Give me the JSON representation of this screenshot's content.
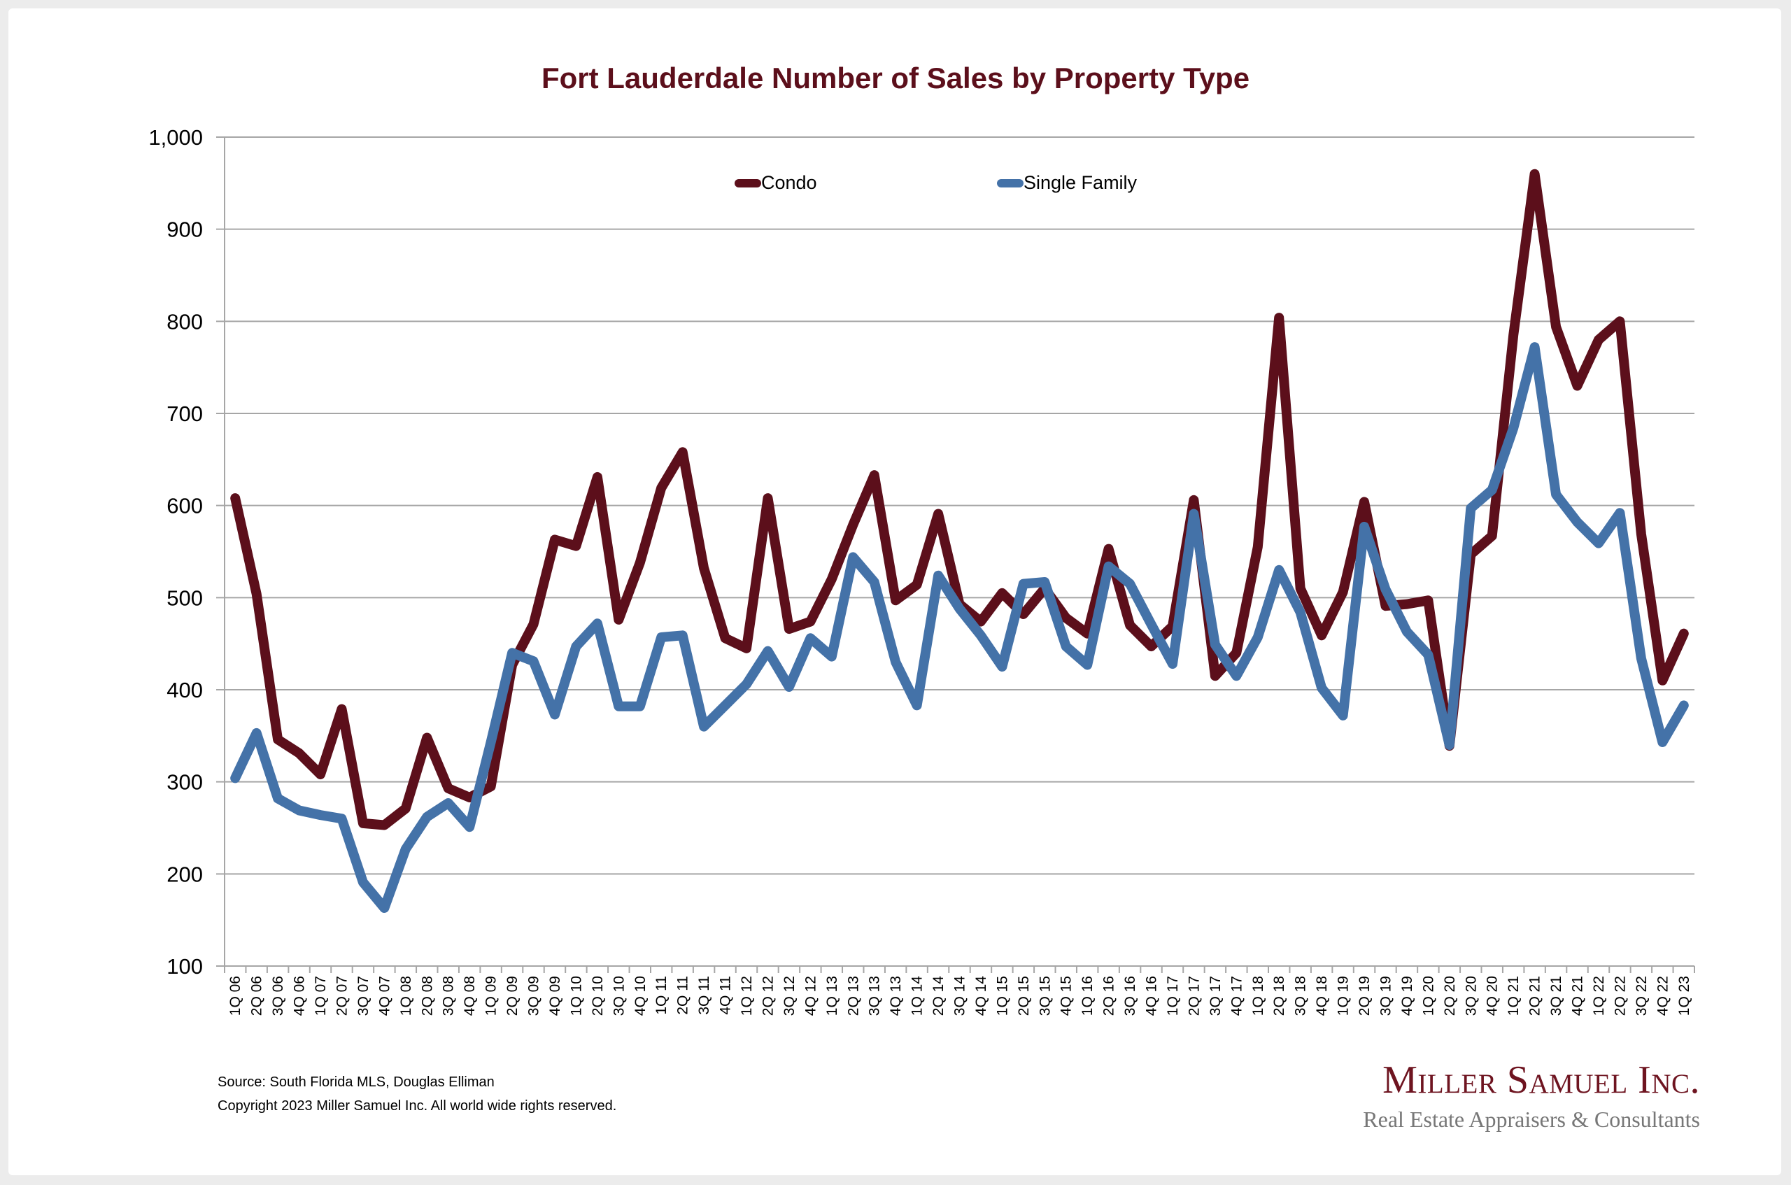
{
  "panel": {
    "background": "#ffffff",
    "frame": "#ececec"
  },
  "chart_data": {
    "type": "line",
    "title": "Fort Lauderdale Number of Sales by Property Type",
    "xlabel": "",
    "ylabel": "",
    "ylim": [
      100,
      1000
    ],
    "yticks": [
      100,
      200,
      300,
      400,
      500,
      600,
      700,
      800,
      900,
      1000
    ],
    "ytick_labels": [
      "100",
      "200",
      "300",
      "400",
      "500",
      "600",
      "700",
      "800",
      "900",
      "1,000"
    ],
    "grid": true,
    "legend_position": "top-center",
    "categories": [
      "1Q 06",
      "2Q 06",
      "3Q 06",
      "4Q 06",
      "1Q 07",
      "2Q 07",
      "3Q 07",
      "4Q 07",
      "1Q 08",
      "2Q 08",
      "3Q 08",
      "4Q 08",
      "1Q 09",
      "2Q 09",
      "3Q 09",
      "4Q 09",
      "1Q 10",
      "2Q 10",
      "3Q 10",
      "4Q 10",
      "1Q 11",
      "2Q 11",
      "3Q 11",
      "4Q 11",
      "1Q 12",
      "2Q 12",
      "3Q 12",
      "4Q 12",
      "1Q 13",
      "2Q 13",
      "3Q 13",
      "4Q 13",
      "1Q 14",
      "2Q 14",
      "3Q 14",
      "4Q 14",
      "1Q 15",
      "2Q 15",
      "3Q 15",
      "4Q 15",
      "1Q 16",
      "2Q 16",
      "3Q 16",
      "4Q 16",
      "1Q 17",
      "2Q 17",
      "3Q 17",
      "4Q 17",
      "1Q 18",
      "2Q 18",
      "3Q 18",
      "4Q 18",
      "1Q 19",
      "2Q 19",
      "3Q 19",
      "4Q 19",
      "1Q 20",
      "2Q 20",
      "3Q 20",
      "4Q 20",
      "1Q 21",
      "2Q 21",
      "3Q 21",
      "4Q 21",
      "1Q 22",
      "2Q 22",
      "3Q 22",
      "4Q 22",
      "1Q 23"
    ],
    "series": [
      {
        "name": "Condo",
        "color": "#5c0f1b",
        "values": [
          608,
          504,
          346,
          331,
          308,
          379,
          255,
          253,
          271,
          348,
          293,
          283,
          295,
          427,
          471,
          563,
          556,
          631,
          476,
          538,
          619,
          658,
          532,
          456,
          445,
          608,
          466,
          474,
          520,
          579,
          633,
          497,
          514,
          591,
          493,
          474,
          505,
          482,
          510,
          478,
          461,
          553,
          470,
          447,
          469,
          606,
          415,
          440,
          555,
          804,
          510,
          459,
          506,
          604,
          491,
          493,
          497,
          339,
          547,
          567,
          785,
          960,
          794,
          730,
          780,
          800,
          569,
          410,
          461
        ]
      },
      {
        "name": "Single Family",
        "color": "#4472a8",
        "values": [
          304,
          353,
          282,
          269,
          264,
          260,
          191,
          163,
          227,
          262,
          277,
          251,
          343,
          440,
          431,
          373,
          447,
          472,
          382,
          382,
          457,
          459,
          360,
          383,
          406,
          442,
          403,
          456,
          436,
          544,
          517,
          430,
          383,
          524,
          488,
          459,
          425,
          515,
          517,
          447,
          427,
          534,
          515,
          471,
          428,
          591,
          449,
          415,
          457,
          530,
          484,
          402,
          372,
          577,
          509,
          463,
          438,
          340,
          597,
          617,
          684,
          772,
          612,
          582,
          559,
          592,
          434,
          343,
          383
        ]
      }
    ]
  },
  "footer": {
    "source": "Source: South Florida MLS, Douglas Elliman",
    "copyright": "Copyright 2023 Miller Samuel Inc.  All world wide rights reserved."
  },
  "logo": {
    "name": "Miller Samuel Inc.",
    "tagline": "Real Estate Appraisers & Consultants"
  }
}
